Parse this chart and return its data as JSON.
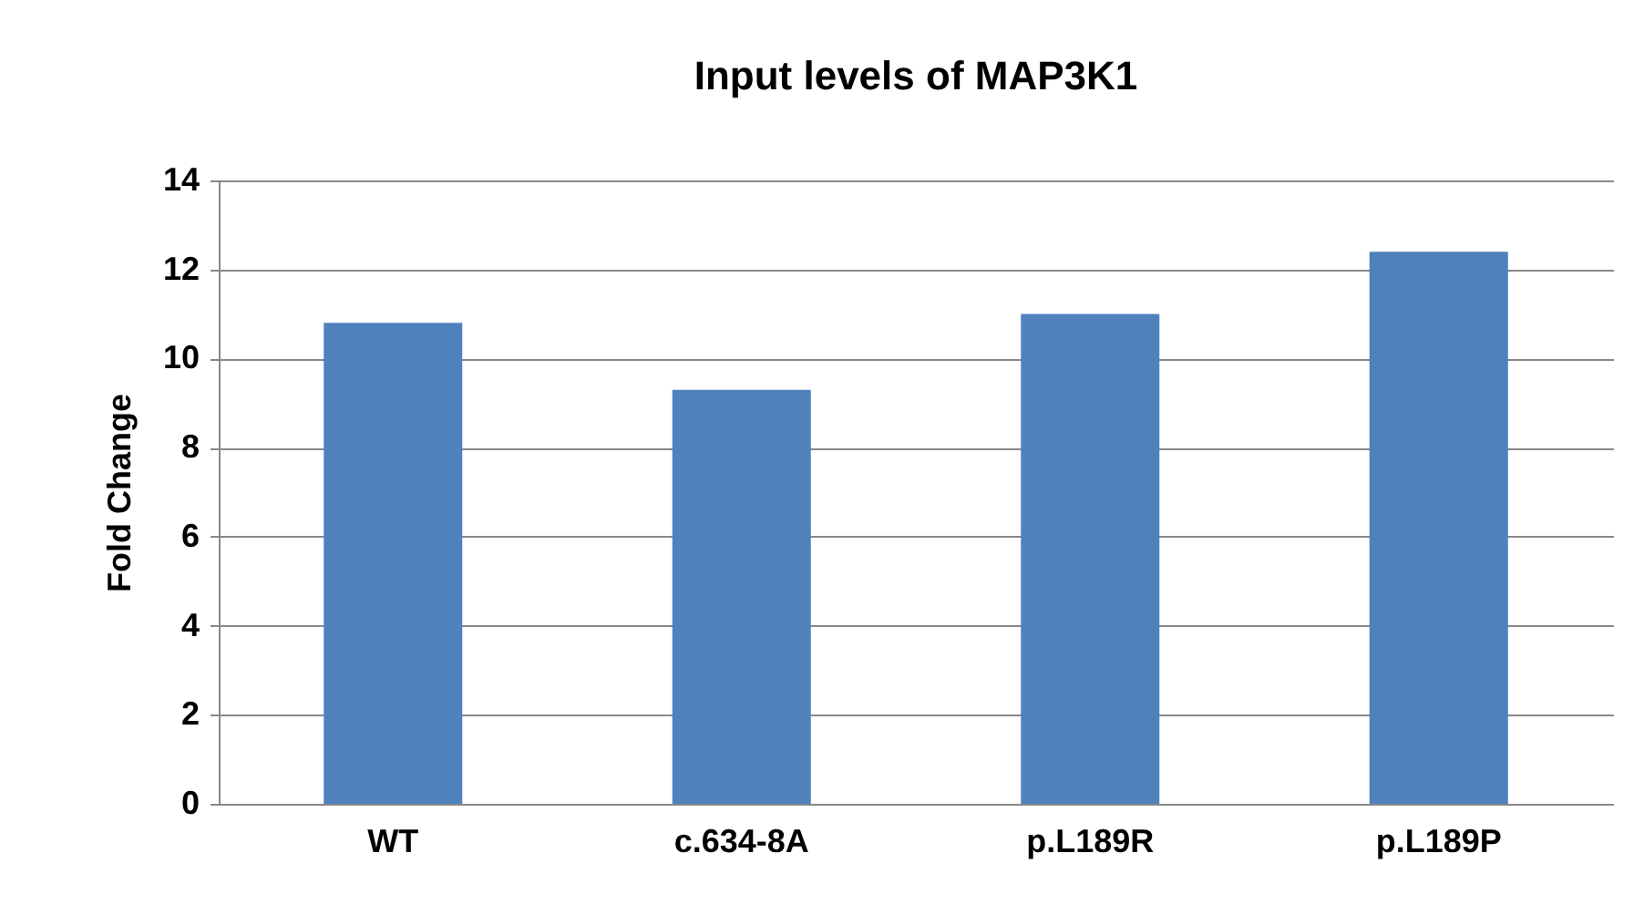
{
  "chart_data": {
    "type": "bar",
    "title": "Input levels of MAP3K1",
    "ylabel": "Fold Change",
    "categories": [
      "WT",
      "c.634-8A",
      "p.L189R",
      "p.L189P"
    ],
    "values": [
      10.8,
      9.3,
      11.0,
      12.4
    ],
    "color": "#4f81bd",
    "ylim": [
      0,
      14
    ],
    "yticks": [
      0,
      2,
      4,
      6,
      8,
      10,
      12,
      14
    ],
    "grid": "y"
  }
}
